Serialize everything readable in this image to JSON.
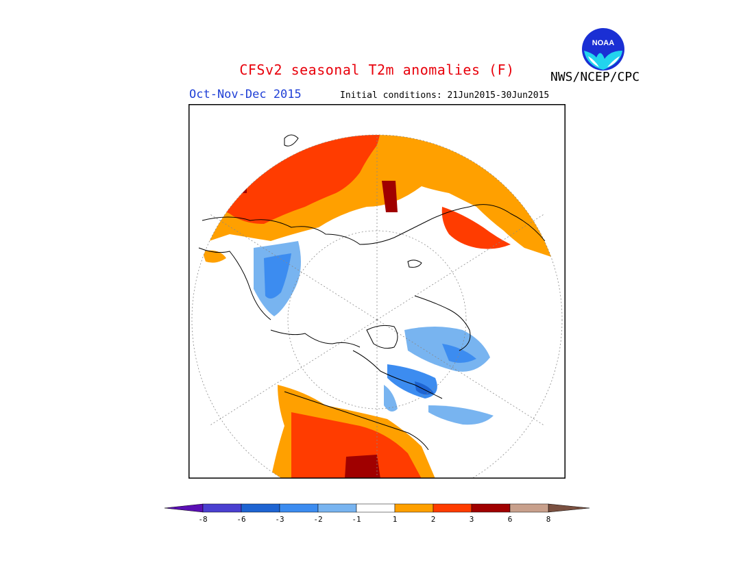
{
  "header": {
    "title": "CFSv2 seasonal T2m anomalies (F)",
    "season": "Oct-Nov-Dec 2015",
    "initial_conditions": "Initial conditions: 21Jun2015-30Jun2015",
    "agency": "NWS/NCEP/CPC",
    "logo_text": "NOAA"
  },
  "legend": {
    "tick_labels": [
      "-8",
      "-6",
      "-3",
      "-2",
      "-1",
      "1",
      "2",
      "3",
      "6",
      "8"
    ],
    "colors": [
      "#5a0fb4",
      "#4a3fd0",
      "#1e64d2",
      "#3c8cf0",
      "#78b4f0",
      "#ffffff",
      "#ffa000",
      "#ff3c00",
      "#a00000",
      "#c8a08c",
      "#7a5040"
    ]
  },
  "map": {
    "projection": "polar stereographic (north)",
    "fill_colors": {
      "cold_light": "#78b4f0",
      "cold_mid": "#3c8cf0",
      "cold_dark": "#1e64d2",
      "warm_orange": "#ffa000",
      "warm_red": "#ff3c00",
      "warm_dark": "#a00000"
    }
  }
}
